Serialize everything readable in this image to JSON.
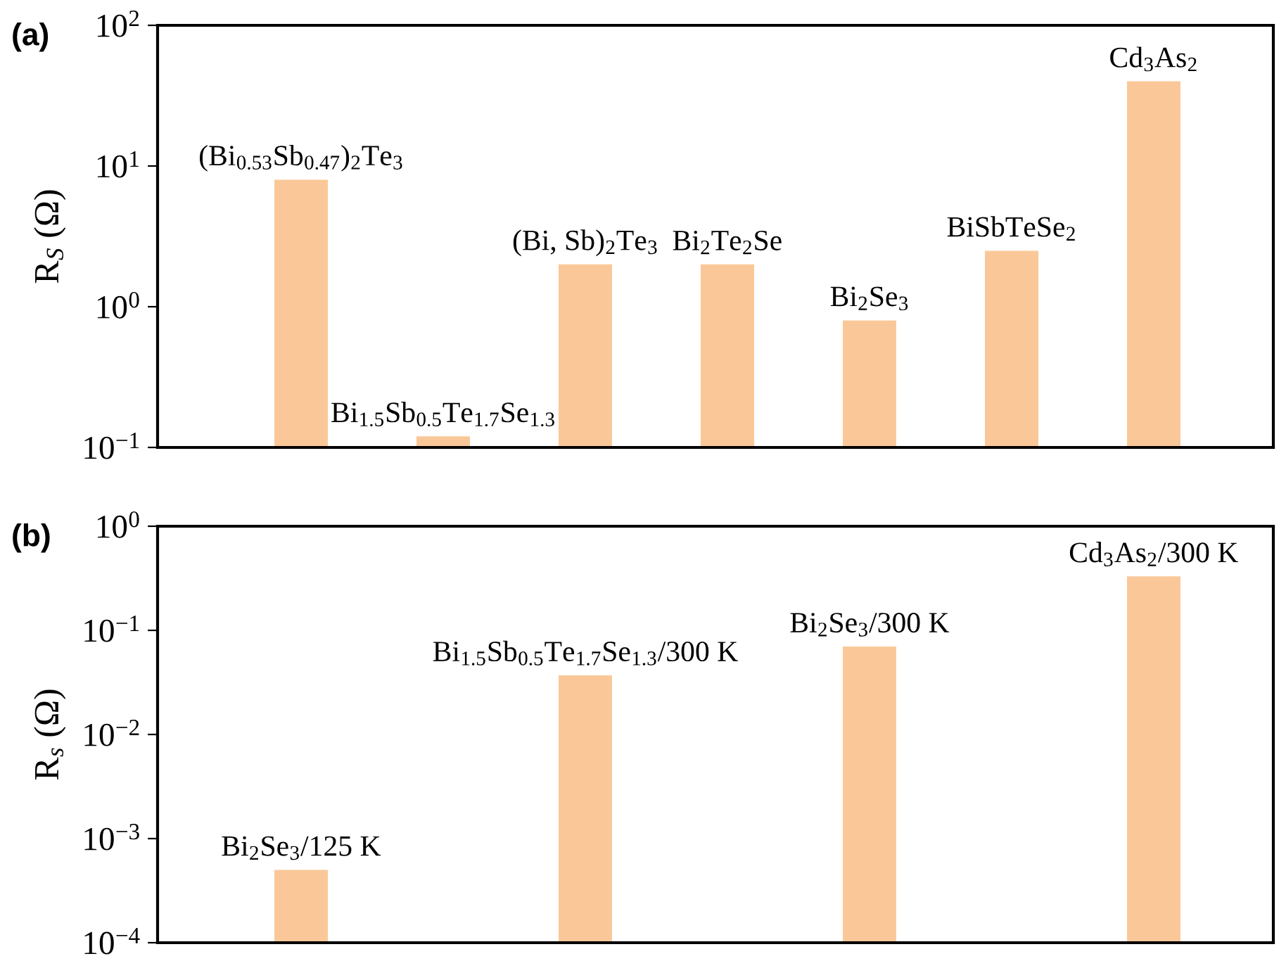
{
  "chart_data": [
    {
      "type": "bar",
      "title": "(a)",
      "ylabel": "R$_{S}$ (Ω)",
      "log": "y",
      "grid": false,
      "categories": [
        "(Bi$_{0.53}$Sb$_{0.47}$)$_{2}$Te$_{3}$",
        "Bi$_{1.5}$Sb$_{0.5}$Te$_{1.7}$Se$_{1.3}$",
        "(Bi, Sb)$_{2}$Te$_{3}$",
        "Bi$_{2}$Te$_{2}$Se",
        "Bi$_{2}$Se$_{3}$",
        "BiSbTeSe$_{2}$",
        "Cd$_{3}$As$_{2}$"
      ],
      "series": [
        {
          "color": "#fac898",
          "values": [
            8,
            0.12,
            2,
            2,
            0.8,
            2.5,
            40
          ]
        }
      ],
      "ylim": [
        0.1,
        100
      ],
      "yticks": [
        {
          "value": 0.1,
          "label": "10$^{−1}$"
        },
        {
          "value": 1,
          "label": "10$^{0}$"
        },
        {
          "value": 10,
          "label": "10$^{1}$"
        },
        {
          "value": 100,
          "label": "10$^{2}$"
        }
      ]
    },
    {
      "type": "bar",
      "title": "(b)",
      "ylabel": "R$_{s}$ (Ω)",
      "log": "y",
      "grid": false,
      "categories": [
        "Bi$_{2}$Se$_{3}$/125 K",
        "Bi$_{1.5}$Sb$_{0.5}$Te$_{1.7}$Se$_{1.3}$/300 K",
        "Bi$_{2}$Se$_{3}$/300 K",
        "Cd$_{3}$As$_{2}$/300 K"
      ],
      "series": [
        {
          "color": "#fac898",
          "values": [
            0.0005,
            0.037,
            0.07,
            0.33
          ]
        }
      ],
      "ylim": [
        0.0001,
        1
      ],
      "yticks": [
        {
          "value": 0.0001,
          "label": "10$^{−4}$"
        },
        {
          "value": 0.001,
          "label": "10$^{−3}$"
        },
        {
          "value": 0.01,
          "label": "10$^{−2}$"
        },
        {
          "value": 0.1,
          "label": "10$^{−1}$"
        },
        {
          "value": 1,
          "label": "10$^{0}$"
        }
      ]
    }
  ]
}
